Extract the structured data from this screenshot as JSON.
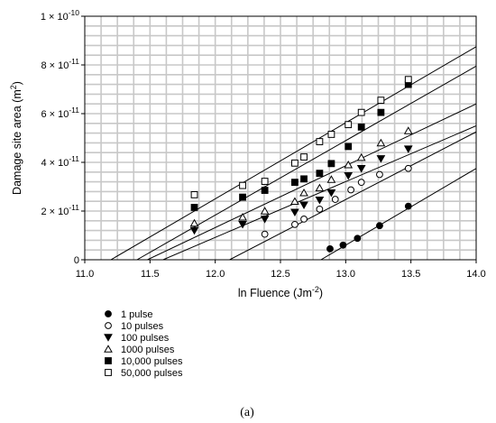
{
  "chart_data": {
    "type": "scatter",
    "xlabel": "ln Fluence (Jm",
    "xlabel_sup": "-2",
    "xlabel_tail": ")",
    "ylabel": "Damage site area (m",
    "ylabel_sup": "2",
    "ylabel_tail": ")",
    "xlim": [
      11.0,
      14.0
    ],
    "ylim": [
      0,
      1e-10
    ],
    "x_ticks": [
      {
        "value": 11.0,
        "label": "11.0"
      },
      {
        "value": 11.5,
        "label": "11.5"
      },
      {
        "value": 12.0,
        "label": "12.0"
      },
      {
        "value": 12.5,
        "label": "12.5"
      },
      {
        "value": 13.0,
        "label": "13.0"
      },
      {
        "value": 13.5,
        "label": "13.5"
      },
      {
        "value": 14.0,
        "label": "14.0"
      }
    ],
    "y_ticks": [
      {
        "value": 0,
        "label": "0",
        "mant": "",
        "exp": ""
      },
      {
        "value": 2e-11,
        "label": "2 × 10-11",
        "mant": "2 × 10",
        "exp": "-11"
      },
      {
        "value": 4e-11,
        "label": "4 × 10-11",
        "mant": "4 × 10",
        "exp": "-11"
      },
      {
        "value": 6e-11,
        "label": "6 × 10-11",
        "mant": "6 × 10",
        "exp": "-11"
      },
      {
        "value": 8e-11,
        "label": "8 × 10-11",
        "mant": "8 × 10",
        "exp": "-11"
      },
      {
        "value": 1e-10,
        "label": "1 × 10-10",
        "mant": "1 × 10",
        "exp": "-10"
      }
    ],
    "grid": true,
    "legend_position": "below-left",
    "caption": "(a)",
    "series": [
      {
        "name": "1 pulse",
        "marker": "circle",
        "filled": true,
        "points": [
          [
            12.88,
            4.5e-12
          ],
          [
            12.98,
            6e-12
          ],
          [
            13.09,
            8.8e-12
          ],
          [
            13.26,
            1.4e-11
          ],
          [
            13.48,
            2.2e-11
          ]
        ],
        "fit": [
          [
            12.81,
            0
          ],
          [
            14.0,
            3.75e-11
          ]
        ]
      },
      {
        "name": "10 pulses",
        "marker": "circle",
        "filled": false,
        "points": [
          [
            12.38,
            1.05e-11
          ],
          [
            12.61,
            1.45e-11
          ],
          [
            12.68,
            1.67e-11
          ],
          [
            12.8,
            2.08e-11
          ],
          [
            12.92,
            2.48e-11
          ],
          [
            13.04,
            2.87e-11
          ],
          [
            13.12,
            3.18e-11
          ],
          [
            13.26,
            3.5e-11
          ],
          [
            13.48,
            3.75e-11
          ]
        ],
        "fit": [
          [
            12.11,
            0
          ],
          [
            14.0,
            5.25e-11
          ]
        ]
      },
      {
        "name": "100 pulses",
        "marker": "triangle-down",
        "filled": true,
        "points": [
          [
            11.84,
            1.2e-11
          ],
          [
            12.21,
            1.45e-11
          ],
          [
            12.38,
            1.67e-11
          ],
          [
            12.61,
            1.95e-11
          ],
          [
            12.68,
            2.25e-11
          ],
          [
            12.8,
            2.45e-11
          ],
          [
            12.89,
            2.75e-11
          ],
          [
            13.02,
            3.45e-11
          ],
          [
            13.12,
            3.75e-11
          ],
          [
            13.27,
            4.15e-11
          ],
          [
            13.48,
            4.55e-11
          ]
        ],
        "fit": [
          [
            11.6,
            0
          ],
          [
            14.0,
            5.5e-11
          ]
        ]
      },
      {
        "name": "1000 pulses",
        "marker": "triangle-up",
        "filled": false,
        "points": [
          [
            11.84,
            1.5e-11
          ],
          [
            12.21,
            1.75e-11
          ],
          [
            12.38,
            2e-11
          ],
          [
            12.61,
            2.4e-11
          ],
          [
            12.68,
            2.75e-11
          ],
          [
            12.8,
            2.95e-11
          ],
          [
            12.89,
            3.3e-11
          ],
          [
            13.02,
            3.9e-11
          ],
          [
            13.12,
            4.2e-11
          ],
          [
            13.27,
            4.8e-11
          ],
          [
            13.48,
            5.3e-11
          ]
        ],
        "fit": [
          [
            11.48,
            0
          ],
          [
            14.0,
            6.4e-11
          ]
        ]
      },
      {
        "name": "10,000 pulses",
        "marker": "square",
        "filled": true,
        "points": [
          [
            11.84,
            2.15e-11
          ],
          [
            12.21,
            2.57e-11
          ],
          [
            12.38,
            2.85e-11
          ],
          [
            12.61,
            3.18e-11
          ],
          [
            12.68,
            3.32e-11
          ],
          [
            12.8,
            3.55e-11
          ],
          [
            12.89,
            3.95e-11
          ],
          [
            13.02,
            4.65e-11
          ],
          [
            13.12,
            5.45e-11
          ],
          [
            13.27,
            6.05e-11
          ],
          [
            13.48,
            7.2e-11
          ]
        ],
        "fit": [
          [
            11.4,
            0
          ],
          [
            14.0,
            7.95e-11
          ]
        ]
      },
      {
        "name": "50,000 pulses",
        "marker": "square",
        "filled": false,
        "points": [
          [
            11.84,
            2.67e-11
          ],
          [
            12.21,
            3.05e-11
          ],
          [
            12.38,
            3.22e-11
          ],
          [
            12.61,
            3.97e-11
          ],
          [
            12.68,
            4.22e-11
          ],
          [
            12.8,
            4.85e-11
          ],
          [
            12.89,
            5.15e-11
          ],
          [
            13.02,
            5.55e-11
          ],
          [
            13.12,
            6.05e-11
          ],
          [
            13.27,
            6.55e-11
          ],
          [
            13.48,
            7.4e-11
          ]
        ],
        "fit": [
          [
            11.2,
            0
          ],
          [
            14.0,
            8.75e-11
          ]
        ]
      }
    ]
  }
}
